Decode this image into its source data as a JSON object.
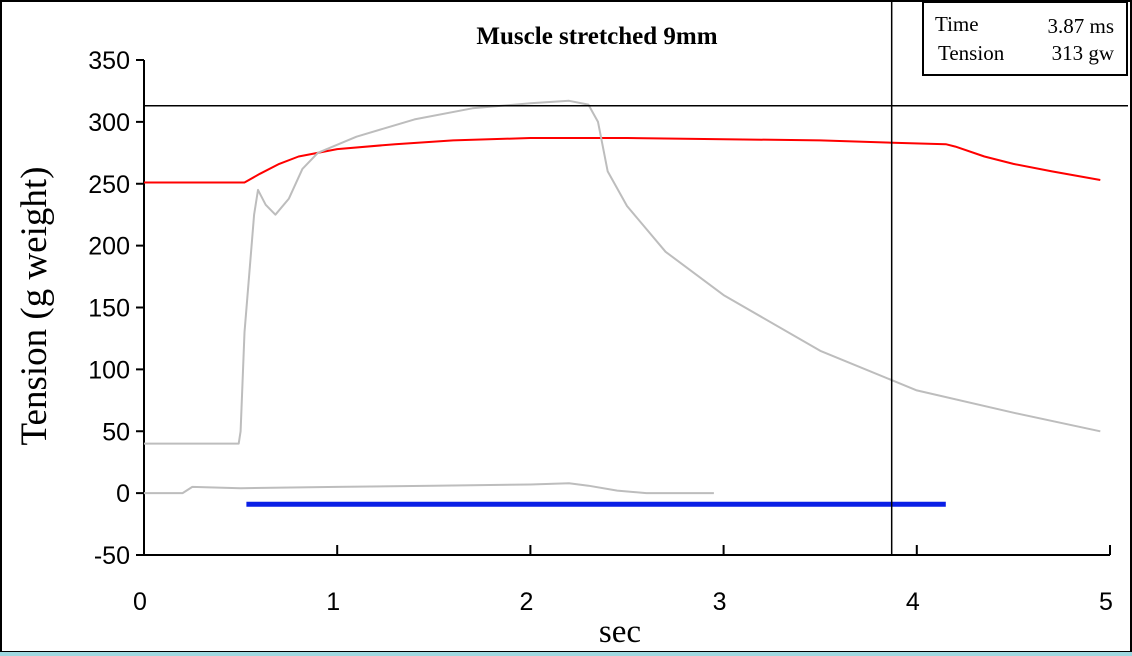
{
  "colors": {
    "force_red": "#ff0000",
    "grey_traces": "#bdbdbd",
    "stim_bar": "#0a1fe6",
    "cursor": "#000000",
    "bottom_strip": "#9fd8e0"
  },
  "readout": {
    "time_label": "Time",
    "time_value": "3.87 ms",
    "tension_label": "Tension",
    "tension_value": "313 gw"
  },
  "chart_data": {
    "type": "line",
    "title": "Muscle stretched 9mm",
    "xlabel": "sec",
    "ylabel": "Tension (g weight)",
    "xlim": [
      0,
      5
    ],
    "ylim": [
      -50,
      350
    ],
    "x_ticks": [
      "0",
      "1",
      "2",
      "3",
      "4",
      "5"
    ],
    "y_ticks": [
      "350",
      "300",
      "250",
      "200",
      "150",
      "100",
      "50",
      "0",
      "-50"
    ],
    "cursor": {
      "x": 3.87,
      "y": 313
    },
    "series": [
      {
        "color": "#ff0000",
        "x": [
          0,
          0.25,
          0.48,
          0.52,
          0.6,
          0.7,
          0.8,
          1.0,
          1.3,
          1.6,
          2.0,
          2.5,
          3.0,
          3.5,
          3.9,
          4.15,
          4.2,
          4.35,
          4.5,
          4.7,
          4.95
        ],
        "y": [
          251,
          251,
          251,
          251,
          258,
          266,
          272,
          278,
          282,
          285,
          287,
          287,
          286,
          285,
          283,
          282,
          280,
          272,
          266,
          260,
          253
        ]
      },
      {
        "color": "#bdbdbd",
        "x": [
          0,
          0.25,
          0.49,
          0.5,
          0.52,
          0.57,
          0.59,
          0.63,
          0.68,
          0.75,
          0.82,
          0.9,
          1.1,
          1.4,
          1.7,
          2.0,
          2.2,
          2.3,
          2.35,
          2.4,
          2.5,
          2.7,
          3.0,
          3.5,
          4.0,
          4.5,
          4.95
        ],
        "y": [
          40,
          40,
          40,
          50,
          130,
          225,
          245,
          233,
          225,
          238,
          262,
          275,
          288,
          302,
          311,
          315,
          317,
          314,
          300,
          260,
          232,
          195,
          160,
          115,
          83,
          65,
          50
        ]
      },
      {
        "color": "#bdbdbd",
        "x": [
          0,
          0.2,
          0.25,
          0.5,
          1.0,
          1.5,
          2.0,
          2.2,
          2.3,
          2.45,
          2.6,
          2.95
        ],
        "y": [
          0,
          0,
          5,
          4,
          5,
          6,
          7,
          8,
          6,
          2,
          0,
          0
        ]
      },
      {
        "color": "#0a1fe6",
        "x": [
          0.53,
          4.15
        ],
        "y": [
          -9,
          -9
        ]
      }
    ]
  }
}
